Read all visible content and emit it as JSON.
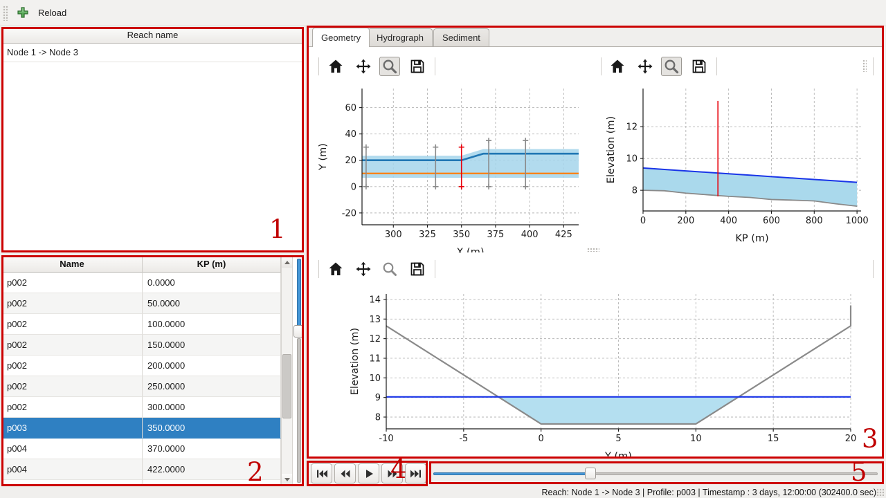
{
  "app": {
    "toolbar": {
      "reload_label": "Reload"
    }
  },
  "reach_panel": {
    "header": "Reach name",
    "items": [
      "Node 1 -> Node 3"
    ]
  },
  "profile_table": {
    "columns": [
      "Name",
      "KP (m)"
    ],
    "rows": [
      [
        "p002",
        "0.0000"
      ],
      [
        "p002",
        "50.0000"
      ],
      [
        "p002",
        "100.0000"
      ],
      [
        "p002",
        "150.0000"
      ],
      [
        "p002",
        "200.0000"
      ],
      [
        "p002",
        "250.0000"
      ],
      [
        "p002",
        "300.0000"
      ],
      [
        "p003",
        "350.0000"
      ],
      [
        "p004",
        "370.0000"
      ],
      [
        "p004",
        "422.0000"
      ]
    ],
    "selected_row_index": 7,
    "vslider_pct": 32.8
  },
  "tabs": {
    "items": [
      {
        "label": "Geometry",
        "active": true
      },
      {
        "label": "Hydrograph",
        "active": false
      },
      {
        "label": "Sediment",
        "active": false
      }
    ]
  },
  "icons": {
    "add": "add-icon",
    "home": "home-icon",
    "pan": "pan-icon",
    "zoom": "zoom-icon",
    "save": "save-icon",
    "skip_start": "skip-start-icon",
    "step_back": "step-back-icon",
    "play": "play-icon",
    "step_forward": "step-forward-icon",
    "skip_end": "skip-end-icon"
  },
  "transport": {
    "slider_pct": 35.4
  },
  "status_bar": {
    "text": "Reach: Node 1 -> Node 3 | Profile: p003 | Timestamp : 3 days, 12:00:00 (302400.0 sec)"
  },
  "annotations": {
    "box_color": "#cc0000",
    "labels": [
      "1",
      "2",
      "3",
      "4",
      "5"
    ]
  },
  "colors": {
    "selection_blue": "#2f80c2",
    "slider_blue": "#4697d7",
    "water_fill": "#aad9ec",
    "water_line": "#1a35e8",
    "bed_gray": "#8a8a8a",
    "bank_blue": "#2077b4",
    "centerline_orange": "#ff7f0e",
    "cursor_red": "#e8000b"
  },
  "chart_data": [
    {
      "id": "plan-chart",
      "type": "line",
      "title": "",
      "xlabel": "X (m)",
      "ylabel": "Y (m)",
      "xlim": [
        277,
        436
      ],
      "ylim": [
        -29,
        74.5
      ],
      "xticks": [
        300,
        325,
        350,
        375,
        400,
        425
      ],
      "yticks": [
        -20,
        0,
        20,
        40,
        60
      ],
      "grid": true,
      "legend": false,
      "series": [
        {
          "name": "channel-extent-band",
          "type": "band",
          "color": "#a5d5eb",
          "opacity": 0.85,
          "x": [
            277,
            350,
            366,
            436
          ],
          "upper": [
            23.5,
            23.5,
            28.5,
            28.5
          ],
          "lower": [
            6.7,
            6.7,
            6.7,
            6.7
          ]
        },
        {
          "name": "bank-line",
          "type": "line",
          "color": "#2077b4",
          "width": 2.6,
          "x": [
            277,
            350,
            366,
            436
          ],
          "y": [
            20,
            20,
            25,
            25
          ]
        },
        {
          "name": "centerline",
          "type": "line",
          "color": "#ff7f0e",
          "width": 2.2,
          "x": [
            277,
            436
          ],
          "y": [
            10,
            10
          ]
        },
        {
          "name": "profile-location-markers",
          "type": "errorbars",
          "color": "#8a8a8a",
          "points": [
            {
              "x": 280,
              "y0": 0,
              "y1": 30
            },
            {
              "x": 331,
              "y0": 0,
              "y1": 30
            },
            {
              "x": 370,
              "y0": 0,
              "y1": 35
            },
            {
              "x": 397,
              "y0": 0,
              "y1": 35
            }
          ]
        },
        {
          "name": "selected-profile-marker",
          "type": "errorbars",
          "color": "#e8000b",
          "points": [
            {
              "x": 350,
              "y0": 0,
              "y1": 30
            }
          ]
        }
      ]
    },
    {
      "id": "profile-chart",
      "type": "line",
      "title": "",
      "xlabel": "KP (m)",
      "ylabel": "Elevation (m)",
      "xlim": [
        0,
        1019
      ],
      "ylim": [
        6.7,
        14.4
      ],
      "xticks": [
        0,
        200,
        400,
        600,
        800,
        1000
      ],
      "yticks": [
        8,
        10,
        12
      ],
      "grid": true,
      "legend": false,
      "series": [
        {
          "name": "water-body-fill",
          "type": "band",
          "color": "#aad9ec",
          "opacity": 1,
          "x": [
            0,
            100,
            200,
            300,
            400,
            500,
            600,
            700,
            800,
            900,
            1000
          ],
          "upper": [
            9.4,
            9.31,
            9.22,
            9.13,
            9.04,
            8.95,
            8.86,
            8.77,
            8.68,
            8.59,
            8.5
          ],
          "lower": [
            8.0,
            7.97,
            7.82,
            7.72,
            7.62,
            7.55,
            7.42,
            7.38,
            7.33,
            7.15,
            7.0
          ]
        },
        {
          "name": "water-surface-line",
          "type": "line",
          "color": "#1a35e8",
          "width": 2,
          "x": [
            0,
            100,
            200,
            300,
            400,
            500,
            600,
            700,
            800,
            900,
            1000
          ],
          "y": [
            9.4,
            9.31,
            9.22,
            9.13,
            9.04,
            8.95,
            8.86,
            8.77,
            8.68,
            8.59,
            8.5
          ]
        },
        {
          "name": "bed-line",
          "type": "line",
          "color": "#8a8a8a",
          "width": 1.8,
          "x": [
            0,
            100,
            200,
            300,
            400,
            500,
            600,
            700,
            800,
            900,
            1000
          ],
          "y": [
            8.0,
            7.97,
            7.82,
            7.72,
            7.62,
            7.55,
            7.42,
            7.38,
            7.33,
            7.15,
            7.0
          ]
        },
        {
          "name": "kp-cursor",
          "type": "vline",
          "color": "#e8000b",
          "width": 1.6,
          "x": 350,
          "y0": 7.62,
          "y1": 13.62
        }
      ]
    },
    {
      "id": "xsection-chart",
      "type": "line",
      "title": "",
      "xlabel": "Y (m)",
      "ylabel": "Elevation (m)",
      "xlim": [
        -10,
        20
      ],
      "ylim": [
        7.4,
        14.28
      ],
      "xticks": [
        -10,
        -5,
        0,
        5,
        10,
        15,
        20
      ],
      "yticks": [
        8,
        9,
        10,
        11,
        12,
        13,
        14
      ],
      "grid": true,
      "legend": false,
      "series": [
        {
          "name": "water-area-fill",
          "type": "band",
          "color": "#b4dff0",
          "opacity": 1,
          "x": [
            -2.76,
            0,
            10,
            12.76
          ],
          "upper": [
            9.03,
            9.03,
            9.03,
            9.03
          ],
          "lower": [
            9.03,
            7.65,
            7.65,
            9.03
          ]
        },
        {
          "name": "bed-profile",
          "type": "line",
          "color": "#8a8a8a",
          "width": 2.2,
          "x": [
            -10,
            0,
            10,
            20,
            20
          ],
          "y": [
            12.65,
            7.65,
            7.65,
            12.65,
            13.7
          ]
        },
        {
          "name": "water-level-line",
          "type": "line",
          "color": "#1a35e8",
          "width": 2.2,
          "x": [
            -10,
            20
          ],
          "y": [
            9.03,
            9.03
          ]
        }
      ]
    }
  ]
}
